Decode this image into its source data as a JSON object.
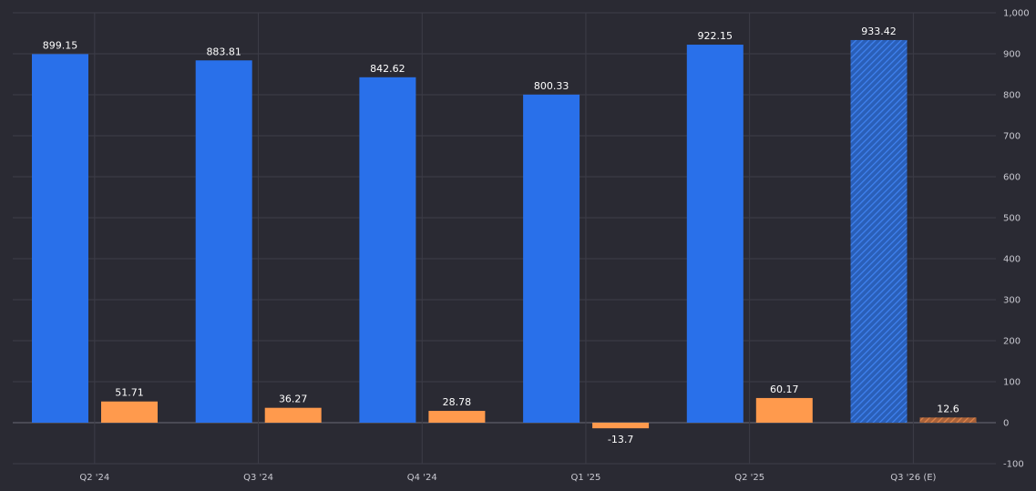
{
  "chart_data": {
    "type": "bar",
    "categories": [
      "Q2 '24",
      "Q3 '24",
      "Q4 '24",
      "Q1 '25",
      "Q2 '25",
      "Q3 '26 (E)"
    ],
    "series": [
      {
        "values": [
          899.15,
          883.81,
          842.62,
          800.33,
          922.15,
          933.42
        ],
        "color": "#2970ea"
      },
      {
        "values": [
          51.71,
          36.27,
          28.78,
          -13.7,
          60.17,
          12.6
        ],
        "color": "#ff9a4d"
      }
    ],
    "data_labels": [
      [
        "899.15",
        "883.81",
        "842.62",
        "800.33",
        "922.15",
        "933.42"
      ],
      [
        "51.71",
        "36.27",
        "28.78",
        "-13.7",
        "60.17",
        "12.6"
      ]
    ],
    "estimated_category": "Q3 '26 (E)",
    "ylim": [
      -100,
      1000
    ],
    "yticks": [
      -100,
      0,
      100,
      200,
      300,
      400,
      500,
      600,
      700,
      800,
      900,
      1000
    ],
    "ytick_labels": [
      "-100",
      "0",
      "100",
      "200",
      "300",
      "400",
      "500",
      "600",
      "700",
      "800",
      "900",
      "1,000"
    ],
    "y_axis_position": "right",
    "grid": true,
    "legend": false,
    "title": "",
    "xlabel": "",
    "ylabel": ""
  },
  "colors": {
    "background": "#2a2a33",
    "grid": "#3d3d48",
    "baseline": "#6a6a75",
    "text": "#ffffff",
    "axis_text": "#c9c9d1"
  }
}
